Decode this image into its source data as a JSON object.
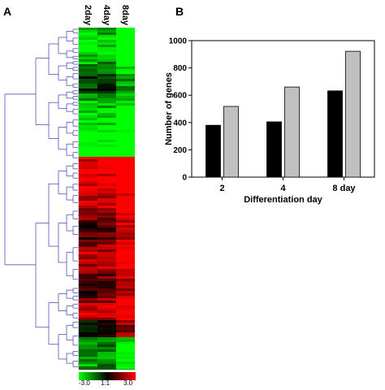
{
  "panel_a": {
    "letter": "A",
    "columns": [
      "2day",
      "4day",
      "8day"
    ],
    "scale": {
      "min_label": "-3.0",
      "mid_label": "1:1",
      "max_label": "3.0",
      "low_color": "#00ff00",
      "mid_color": "#000000",
      "high_color": "#ff0000"
    },
    "dendrogram_color": "#3a3aa8"
  },
  "panel_b": {
    "letter": "B"
  },
  "chart_data": {
    "type": "bar",
    "categories": [
      "2",
      "4",
      "8 day"
    ],
    "series": [
      {
        "color": "#000000",
        "values": [
          380,
          405,
          632
        ]
      },
      {
        "color": "#c0c0c0",
        "values": [
          518,
          660,
          922
        ]
      }
    ],
    "xlabel": "Differentiation day",
    "ylabel": "Number of genes",
    "ylim": [
      0,
      1000
    ],
    "yticks": [
      "0",
      "200",
      "400",
      "600",
      "800",
      "1000"
    ]
  }
}
